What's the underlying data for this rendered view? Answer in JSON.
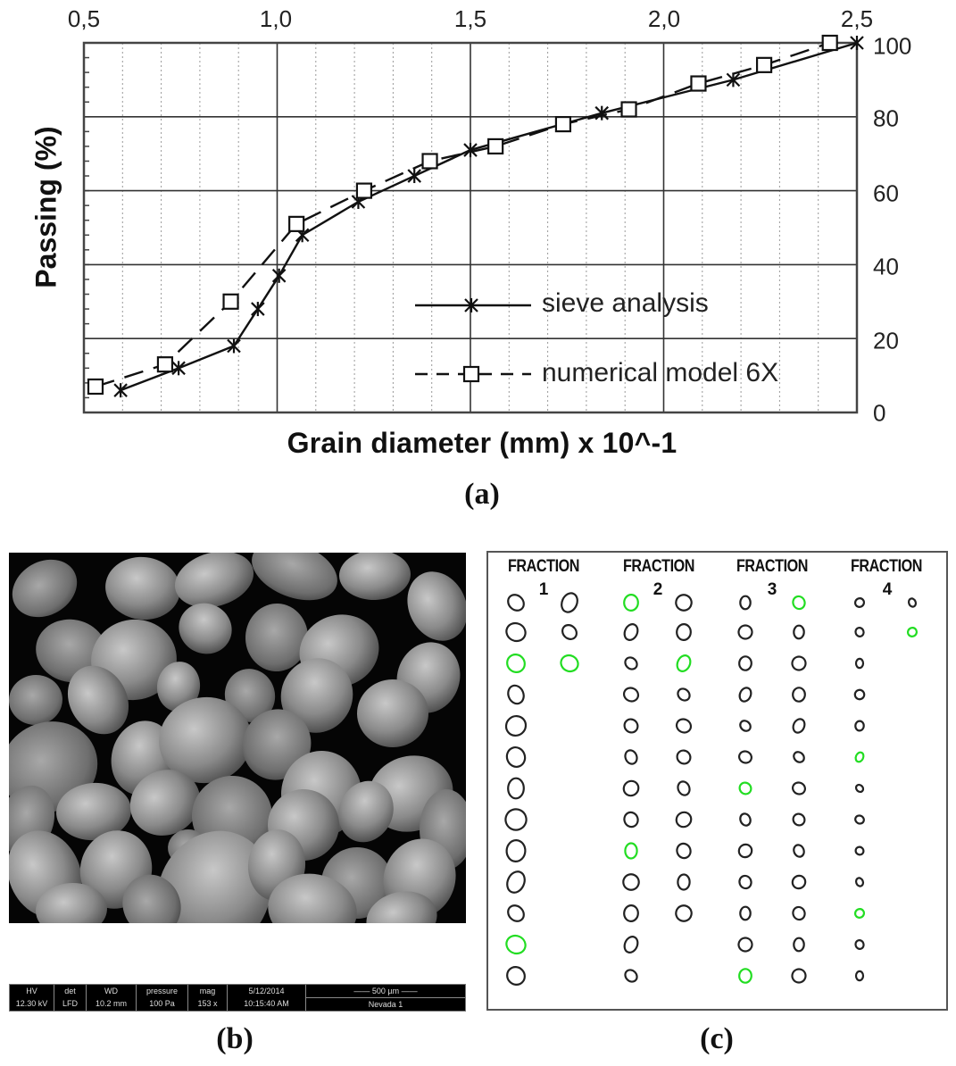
{
  "chart_data": {
    "type": "line",
    "title": "",
    "xlabel": "Grain diameter (mm) x 10^-1",
    "ylabel": "Passing (%)",
    "xlim": [
      0.5,
      2.5
    ],
    "ylim": [
      0,
      100
    ],
    "x_ticks": [
      "0,5",
      "1,0",
      "1,5",
      "2,0",
      "2,5"
    ],
    "x_tick_values": [
      0.5,
      1.0,
      1.5,
      2.0,
      2.5
    ],
    "x_axis_position": "top",
    "y_ticks": [
      "0",
      "20",
      "40",
      "60",
      "80",
      "100"
    ],
    "y_tick_values": [
      0,
      20,
      40,
      60,
      80,
      100
    ],
    "y_axis_position": "right",
    "grid": {
      "major": true,
      "minor_x_dotted": true
    },
    "legend_position": "lower right",
    "series": [
      {
        "name": "sieve analysis",
        "line_style": "solid",
        "marker": "star",
        "x": [
          0.595,
          0.745,
          0.888,
          0.95,
          1.005,
          1.065,
          1.21,
          1.355,
          1.5,
          1.84,
          2.18,
          2.5
        ],
        "y": [
          6,
          12,
          18,
          28,
          37,
          48,
          57,
          64,
          71,
          81,
          90,
          100
        ]
      },
      {
        "name": "numerical model 6X",
        "line_style": "dashed",
        "marker": "square",
        "x": [
          0.53,
          0.71,
          0.88,
          1.05,
          1.225,
          1.395,
          1.565,
          1.74,
          1.91,
          2.09,
          2.26,
          2.43
        ],
        "y": [
          7,
          13,
          30,
          51,
          60,
          68,
          72,
          78,
          82,
          89,
          94,
          100
        ]
      }
    ]
  },
  "panels": {
    "a": {
      "label": "(a)"
    },
    "b": {
      "label": "(b)",
      "sem_info_bar": {
        "cells": [
          {
            "top": "HV",
            "bottom": "12.30 kV"
          },
          {
            "top": "det",
            "bottom": "LFD"
          },
          {
            "top": "WD",
            "bottom": "10.2 mm"
          },
          {
            "top": "pressure",
            "bottom": "100 Pa"
          },
          {
            "top": "mag",
            "bottom": "153 x"
          },
          {
            "top": "5/12/2014",
            "bottom": "10:15:40 AM"
          }
        ],
        "scale_bar": "500 µm",
        "sample": "Nevada 1"
      }
    },
    "c": {
      "label": "(c)",
      "fractions": [
        {
          "title": "FRACTION",
          "number": "1"
        },
        {
          "title": "FRACTION",
          "number": "2"
        },
        {
          "title": "FRACTION",
          "number": "3"
        },
        {
          "title": "FRACTION",
          "number": "4"
        }
      ],
      "outline_color": "#222222",
      "highlight_color": "#22dd22"
    }
  }
}
